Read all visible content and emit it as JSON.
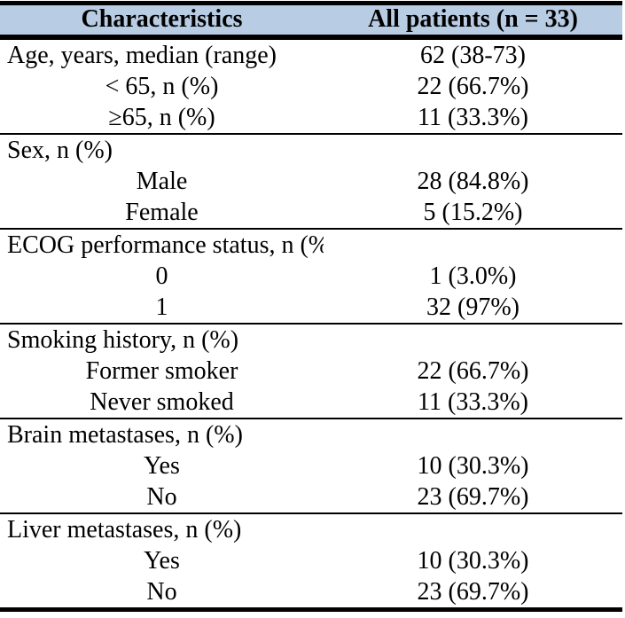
{
  "table": {
    "columns": [
      {
        "label": "Characteristics"
      },
      {
        "label": "All patients (n = 33)"
      }
    ],
    "rows": [
      {
        "label": "Age, years, median (range)",
        "value": "62 (38-73)",
        "type": "category"
      },
      {
        "label": "< 65, n (%)",
        "value": "22 (66.7%)",
        "type": "sub"
      },
      {
        "label": "≥65, n (%)",
        "value": "11 (33.3%)",
        "type": "sub"
      },
      {
        "label": "Sex, n (%)",
        "value": "",
        "type": "category"
      },
      {
        "label": "Male",
        "value": "28 (84.8%)",
        "type": "sub"
      },
      {
        "label": "Female",
        "value": "5 (15.2%)",
        "type": "sub"
      },
      {
        "label": "ECOG performance status, n (%)",
        "value": "",
        "type": "category"
      },
      {
        "label": "0",
        "value": "1 (3.0%)",
        "type": "sub"
      },
      {
        "label": "1",
        "value": "32 (97%)",
        "type": "sub"
      },
      {
        "label": "Smoking history, n (%)",
        "value": "",
        "type": "category"
      },
      {
        "label": "Former smoker",
        "value": "22 (66.7%)",
        "type": "sub"
      },
      {
        "label": "Never smoked",
        "value": "11 (33.3%)",
        "type": "sub"
      },
      {
        "label": "Brain metastases, n (%)",
        "value": "",
        "type": "category"
      },
      {
        "label": "Yes",
        "value": "10 (30.3%)",
        "type": "sub"
      },
      {
        "label": "No",
        "value": "23 (69.7%)",
        "type": "sub"
      },
      {
        "label": "Liver metastases, n (%)",
        "value": "",
        "type": "category"
      },
      {
        "label": "Yes",
        "value": "10 (30.3%)",
        "type": "sub"
      },
      {
        "label": "No",
        "value": "23 (69.7%)",
        "type": "sub"
      }
    ],
    "colors": {
      "header_bg": "#b8cce4",
      "border": "#000000",
      "text": "#000000"
    }
  }
}
